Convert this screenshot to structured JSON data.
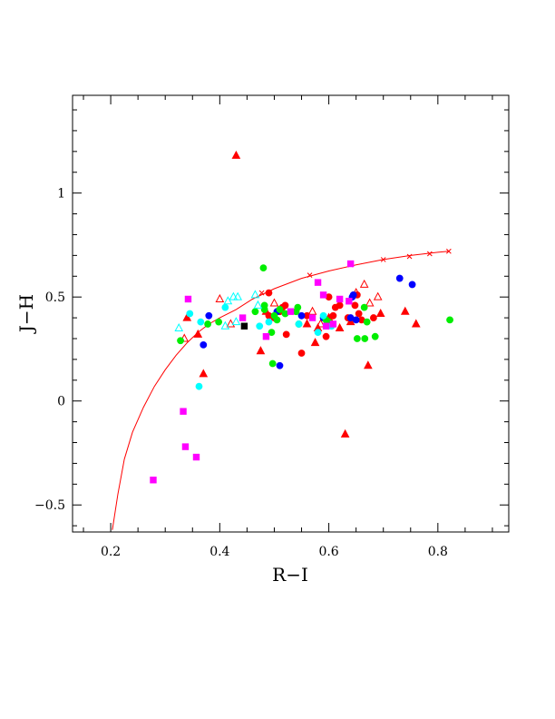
{
  "chart_data": {
    "type": "scatter",
    "title": "",
    "xlabel": "R−I",
    "ylabel": "J−H",
    "xlim": [
      0.13,
      0.93
    ],
    "ylim": [
      -0.63,
      1.47
    ],
    "grid": false,
    "x_ticks": [
      {
        "v": 0.2,
        "label": "0.2"
      },
      {
        "v": 0.4,
        "label": "0.4"
      },
      {
        "v": 0.6,
        "label": "0.6"
      },
      {
        "v": 0.8,
        "label": "0.8"
      }
    ],
    "y_ticks": [
      {
        "v": -0.5,
        "label": "−0.5"
      },
      {
        "v": 0,
        "label": "0"
      },
      {
        "v": 0.5,
        "label": "0.5"
      },
      {
        "v": 1,
        "label": "1"
      }
    ],
    "curve": {
      "color": "#ff0000",
      "points": [
        [
          0.203,
          -0.62
        ],
        [
          0.213,
          -0.45
        ],
        [
          0.225,
          -0.28
        ],
        [
          0.24,
          -0.15
        ],
        [
          0.26,
          -0.03
        ],
        [
          0.28,
          0.07
        ],
        [
          0.3,
          0.15
        ],
        [
          0.32,
          0.22
        ],
        [
          0.34,
          0.28
        ],
        [
          0.36,
          0.33
        ],
        [
          0.38,
          0.37
        ],
        [
          0.4,
          0.4
        ],
        [
          0.43,
          0.44
        ],
        [
          0.46,
          0.49
        ],
        [
          0.5,
          0.54
        ],
        [
          0.55,
          0.59
        ],
        [
          0.6,
          0.625
        ],
        [
          0.65,
          0.655
        ],
        [
          0.7,
          0.68
        ],
        [
          0.75,
          0.7
        ],
        [
          0.8,
          0.715
        ],
        [
          0.82,
          0.72
        ]
      ],
      "markers": [
        [
          0.477,
          0.52
        ],
        [
          0.565,
          0.605
        ],
        [
          0.64,
          0.655
        ],
        [
          0.7,
          0.68
        ],
        [
          0.748,
          0.695
        ],
        [
          0.785,
          0.708
        ],
        [
          0.82,
          0.72
        ]
      ]
    },
    "series": [
      {
        "marker": "triangle",
        "color": "#ff0000",
        "filled": true,
        "points": [
          [
            0.43,
            1.18
          ],
          [
            0.34,
            0.4
          ],
          [
            0.36,
            0.32
          ],
          [
            0.37,
            0.13
          ],
          [
            0.475,
            0.24
          ],
          [
            0.485,
            0.43
          ],
          [
            0.56,
            0.37
          ],
          [
            0.575,
            0.28
          ],
          [
            0.6,
            0.4
          ],
          [
            0.62,
            0.35
          ],
          [
            0.63,
            -0.16
          ],
          [
            0.672,
            0.17
          ],
          [
            0.695,
            0.42
          ],
          [
            0.74,
            0.43
          ],
          [
            0.76,
            0.37
          ],
          [
            0.58,
            0.35
          ],
          [
            0.64,
            0.38
          ]
        ]
      },
      {
        "marker": "triangle",
        "color": "#ff0000",
        "filled": false,
        "points": [
          [
            0.335,
            0.3
          ],
          [
            0.4,
            0.49
          ],
          [
            0.5,
            0.47
          ],
          [
            0.57,
            0.43
          ],
          [
            0.585,
            0.37
          ],
          [
            0.65,
            0.52
          ],
          [
            0.665,
            0.56
          ],
          [
            0.675,
            0.47
          ],
          [
            0.69,
            0.5
          ],
          [
            0.42,
            0.37
          ]
        ]
      },
      {
        "marker": "circle",
        "color": "#ff0000",
        "filled": true,
        "points": [
          [
            0.49,
            0.52
          ],
          [
            0.51,
            0.43
          ],
          [
            0.515,
            0.45
          ],
          [
            0.52,
            0.46
          ],
          [
            0.522,
            0.32
          ],
          [
            0.55,
            0.23
          ],
          [
            0.56,
            0.41
          ],
          [
            0.595,
            0.31
          ],
          [
            0.6,
            0.5
          ],
          [
            0.608,
            0.41
          ],
          [
            0.612,
            0.45
          ],
          [
            0.62,
            0.46
          ],
          [
            0.635,
            0.4
          ],
          [
            0.648,
            0.46
          ],
          [
            0.652,
            0.51
          ],
          [
            0.655,
            0.42
          ],
          [
            0.66,
            0.39
          ],
          [
            0.682,
            0.4
          ],
          [
            0.49,
            0.41
          ],
          [
            0.5,
            0.4
          ]
        ]
      },
      {
        "marker": "circle",
        "color": "#0000ff",
        "filled": true,
        "points": [
          [
            0.37,
            0.27
          ],
          [
            0.38,
            0.41
          ],
          [
            0.51,
            0.17
          ],
          [
            0.505,
            0.43
          ],
          [
            0.55,
            0.41
          ],
          [
            0.59,
            0.4
          ],
          [
            0.64,
            0.4
          ],
          [
            0.643,
            0.5
          ],
          [
            0.65,
            0.39
          ],
          [
            0.73,
            0.59
          ],
          [
            0.753,
            0.56
          ],
          [
            0.645,
            0.51
          ]
        ]
      },
      {
        "marker": "circle",
        "color": "#00ee00",
        "filled": true,
        "points": [
          [
            0.328,
            0.29
          ],
          [
            0.378,
            0.37
          ],
          [
            0.398,
            0.38
          ],
          [
            0.465,
            0.43
          ],
          [
            0.48,
            0.64
          ],
          [
            0.482,
            0.46
          ],
          [
            0.482,
            0.44
          ],
          [
            0.495,
            0.33
          ],
          [
            0.497,
            0.18
          ],
          [
            0.5,
            0.41
          ],
          [
            0.505,
            0.39
          ],
          [
            0.51,
            0.44
          ],
          [
            0.52,
            0.42
          ],
          [
            0.54,
            0.43
          ],
          [
            0.543,
            0.45
          ],
          [
            0.595,
            0.39
          ],
          [
            0.6,
            0.38
          ],
          [
            0.652,
            0.3
          ],
          [
            0.666,
            0.3
          ],
          [
            0.67,
            0.38
          ],
          [
            0.665,
            0.45
          ],
          [
            0.685,
            0.31
          ],
          [
            0.822,
            0.39
          ],
          [
            0.545,
            0.37
          ]
        ]
      },
      {
        "marker": "circle",
        "color": "#00ffff",
        "filled": true,
        "points": [
          [
            0.345,
            0.42
          ],
          [
            0.362,
            0.07
          ],
          [
            0.365,
            0.38
          ],
          [
            0.41,
            0.45
          ],
          [
            0.473,
            0.36
          ],
          [
            0.49,
            0.38
          ],
          [
            0.545,
            0.37
          ],
          [
            0.59,
            0.41
          ],
          [
            0.605,
            0.36
          ],
          [
            0.58,
            0.33
          ]
        ]
      },
      {
        "marker": "triangle",
        "color": "#00ffff",
        "filled": false,
        "points": [
          [
            0.325,
            0.35
          ],
          [
            0.415,
            0.48
          ],
          [
            0.425,
            0.5
          ],
          [
            0.433,
            0.5
          ],
          [
            0.465,
            0.51
          ],
          [
            0.47,
            0.46
          ],
          [
            0.41,
            0.36
          ],
          [
            0.43,
            0.38
          ]
        ]
      },
      {
        "marker": "square",
        "color": "#ff00ff",
        "filled": true,
        "points": [
          [
            0.278,
            -0.38
          ],
          [
            0.333,
            -0.05
          ],
          [
            0.337,
            -0.22
          ],
          [
            0.342,
            0.49
          ],
          [
            0.357,
            -0.27
          ],
          [
            0.442,
            0.4
          ],
          [
            0.485,
            0.31
          ],
          [
            0.53,
            0.43
          ],
          [
            0.58,
            0.57
          ],
          [
            0.59,
            0.51
          ],
          [
            0.595,
            0.36
          ],
          [
            0.62,
            0.49
          ],
          [
            0.637,
            0.48
          ],
          [
            0.64,
            0.66
          ],
          [
            0.608,
            0.37
          ],
          [
            0.57,
            0.4
          ]
        ]
      },
      {
        "marker": "square",
        "color": "#000000",
        "filled": true,
        "points": [
          [
            0.445,
            0.36
          ]
        ]
      }
    ]
  }
}
